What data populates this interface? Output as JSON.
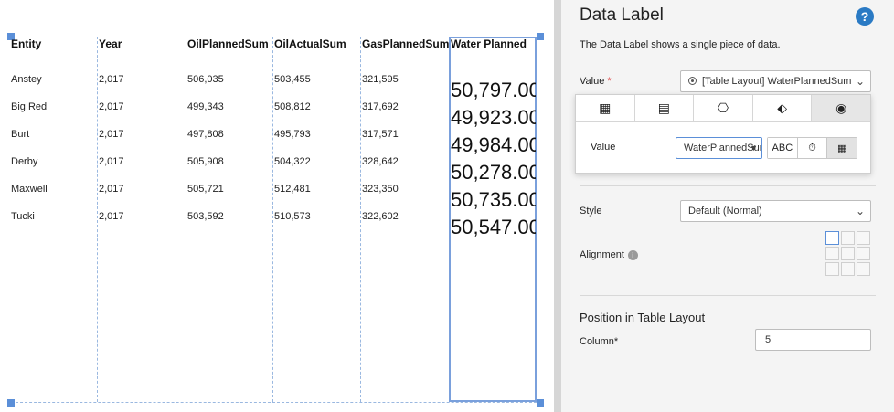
{
  "table": {
    "headers": [
      "Entity",
      "Year",
      "OilPlannedSum",
      "OilActualSum",
      "GasPlannedSum",
      "Water Planned"
    ],
    "rows": [
      {
        "entity": "Anstey",
        "year": "2,017",
        "oil_planned": "506,035",
        "oil_actual": "503,455",
        "gas_planned": "321,595",
        "water_planned": "50,797.00"
      },
      {
        "entity": "Big Red",
        "year": "2,017",
        "oil_planned": "499,343",
        "oil_actual": "508,812",
        "gas_planned": "317,692",
        "water_planned": "49,923.00"
      },
      {
        "entity": "Burt",
        "year": "2,017",
        "oil_planned": "497,808",
        "oil_actual": "495,793",
        "gas_planned": "317,571",
        "water_planned": "49,984.00"
      },
      {
        "entity": "Derby",
        "year": "2,017",
        "oil_planned": "505,908",
        "oil_actual": "504,322",
        "gas_planned": "328,642",
        "water_planned": "50,278.00"
      },
      {
        "entity": "Maxwell",
        "year": "2,017",
        "oil_planned": "505,721",
        "oil_actual": "512,481",
        "gas_planned": "323,350",
        "water_planned": "50,735.00"
      },
      {
        "entity": "Tucki",
        "year": "2,017",
        "oil_planned": "503,592",
        "oil_actual": "510,573",
        "gas_planned": "322,602",
        "water_planned": "50,547.00"
      }
    ]
  },
  "panel": {
    "title": "Data Label",
    "help_glyph": "?",
    "description": "The Data Label shows a single piece of data.",
    "value_label": "Value",
    "required_mark": "*",
    "value_select": "[Table Layout] WaterPlannedSum",
    "popup": {
      "tabs": [
        {
          "name": "table-icon",
          "glyph": "▦"
        },
        {
          "name": "calculator-icon",
          "glyph": "▤"
        },
        {
          "name": "network-icon",
          "glyph": "⎔"
        },
        {
          "name": "tag-icon",
          "glyph": "⬖"
        },
        {
          "name": "target-icon",
          "glyph": "◉"
        }
      ],
      "value_label": "Value",
      "value_select": "WaterPlannedSum",
      "buttons": [
        {
          "name": "text-mode-button",
          "label": "ABC"
        },
        {
          "name": "timer-mode-button",
          "label": "⏱"
        },
        {
          "name": "field-mode-button",
          "label": "▦"
        }
      ]
    },
    "style_label": "Style",
    "style_select": "Default (Normal)",
    "alignment_label": "Alignment",
    "info_glyph": "i",
    "position_title": "Position in Table Layout",
    "column_label": "Column*",
    "column_value": "5"
  },
  "colors": {
    "accent": "#5b8fd8",
    "help": "#2a7ac4",
    "required": "#dd3333"
  }
}
